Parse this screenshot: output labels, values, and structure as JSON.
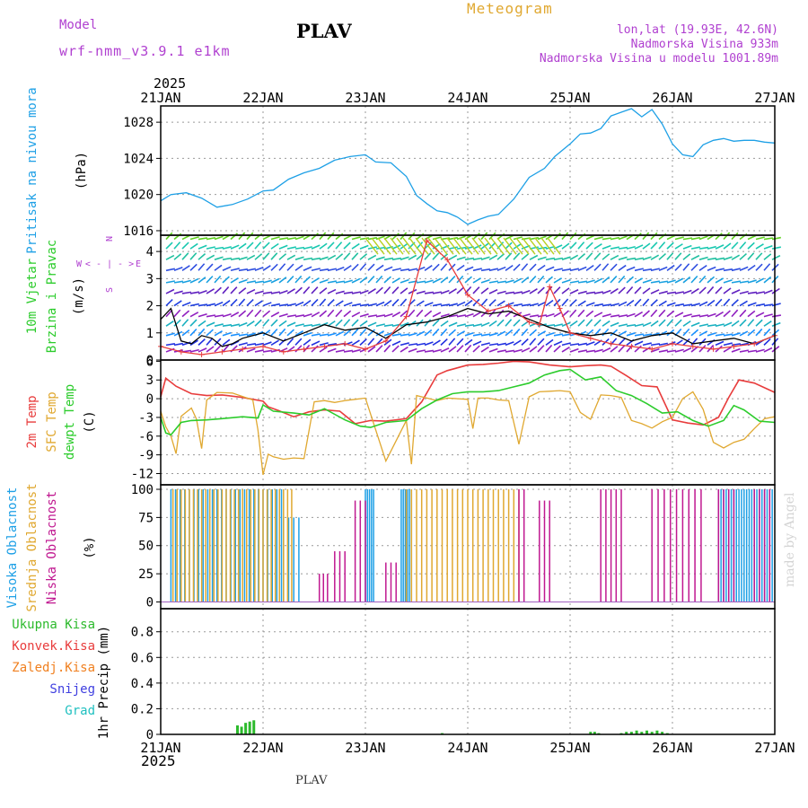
{
  "header": {
    "title": "PLAV",
    "chart_label": "Meteogram",
    "model_label": "Model",
    "model_name": "wrf-nmm_v3.9.1 e1km",
    "coords": "lon,lat (19.93E, 42.6N)",
    "elevation": "Nadmorska Visina 933m",
    "model_elevation": "Nadmorska Visina u modelu 1001.89m",
    "footer_station": "PLAV",
    "watermark": "made by Angel",
    "year_top": "2025",
    "year_bottom": "2025"
  },
  "colors": {
    "pressure": "#1ea0e6",
    "temp2m": "#e83c3c",
    "sfctemp": "#e0a830",
    "dewpt": "#2ccc2c",
    "wind_black": "#000000",
    "wind_red": "#e83c3c",
    "cloud_high": "#1ea0e6",
    "cloud_mid": "#e0a830",
    "cloud_low": "#c01890",
    "precip_total": "#2cba2c",
    "precip_conv": "#e83c3c",
    "precip_frz": "#f08020",
    "precip_snow": "#4040e0",
    "precip_grad": "#20c0c0",
    "purple_text": "#b040d0"
  },
  "chart_data": {
    "type": "line",
    "x_ticks": [
      "21JAN",
      "22JAN",
      "23JAN",
      "24JAN",
      "25JAN",
      "26JAN",
      "27JAN"
    ],
    "x_range_days": [
      0,
      6
    ],
    "panels": [
      {
        "id": "pressure",
        "ylabel": "Pritisak na nivou mora",
        "unit": "(hPa)",
        "ylim": [
          1015.5,
          1029.8
        ],
        "yticks": [
          "1016",
          "1020",
          "1024",
          "1028"
        ],
        "ytick_values": [
          1016,
          1020,
          1024,
          1028
        ],
        "series": [
          {
            "key": "pressure",
            "x": [
              0,
              0.1,
              0.25,
              0.4,
              0.55,
              0.7,
              0.85,
              1.0,
              1.1,
              1.25,
              1.4,
              1.55,
              1.7,
              1.85,
              2.0,
              2.1,
              2.25,
              2.4,
              2.5,
              2.6,
              2.7,
              2.8,
              2.9,
              3.0,
              3.1,
              3.2,
              3.3,
              3.45,
              3.6,
              3.75,
              3.85,
              4.0,
              4.1,
              4.2,
              4.3,
              4.4,
              4.5,
              4.6,
              4.7,
              4.8,
              4.9,
              5.0,
              5.1,
              5.2,
              5.3,
              5.4,
              5.5,
              5.6,
              5.7,
              5.8,
              5.9,
              6.0
            ],
            "y": [
              1019.3,
              1020.0,
              1020.2,
              1019.6,
              1018.6,
              1018.9,
              1019.5,
              1020.4,
              1020.5,
              1021.7,
              1022.4,
              1022.9,
              1023.8,
              1024.2,
              1024.4,
              1023.6,
              1023.5,
              1022.0,
              1019.9,
              1019.0,
              1018.2,
              1018.0,
              1017.5,
              1016.7,
              1017.2,
              1017.6,
              1017.8,
              1019.5,
              1021.9,
              1022.9,
              1024.2,
              1025.6,
              1026.7,
              1026.8,
              1027.3,
              1028.7,
              1029.1,
              1029.5,
              1028.6,
              1029.4,
              1027.8,
              1025.6,
              1024.4,
              1024.2,
              1025.5,
              1026.0,
              1026.2,
              1025.9,
              1026.0,
              1026.0,
              1025.8,
              1025.7
            ]
          }
        ]
      },
      {
        "id": "wind",
        "ylabel": "10m Vjetar Brzina i Pravac",
        "unit": "(m/s)",
        "compass_labels": [
          "N",
          "W",
          "E",
          "S",
          "< - | - >"
        ],
        "ylim": [
          0,
          4.6
        ],
        "yticks": [
          "0",
          "1",
          "2",
          "3",
          "4"
        ],
        "ytick_values": [
          0,
          1,
          2,
          3,
          4
        ],
        "series": [
          {
            "key": "wind_black",
            "x": [
              0,
              0.1,
              0.2,
              0.3,
              0.4,
              0.5,
              0.6,
              0.7,
              0.8,
              0.9,
              1.0,
              1.2,
              1.4,
              1.6,
              1.8,
              2.0,
              2.2,
              2.4,
              2.6,
              2.8,
              3.0,
              3.2,
              3.4,
              3.6,
              3.8,
              4.0,
              4.2,
              4.4,
              4.6,
              4.8,
              5.0,
              5.2,
              5.4,
              5.6,
              5.8,
              6.0
            ],
            "y": [
              1.5,
              1.9,
              0.7,
              0.6,
              0.9,
              0.8,
              0.5,
              0.6,
              0.8,
              0.9,
              1.0,
              0.7,
              1.0,
              1.3,
              1.1,
              1.2,
              0.8,
              1.3,
              1.4,
              1.6,
              1.9,
              1.7,
              1.8,
              1.5,
              1.2,
              1.0,
              0.9,
              1.0,
              0.7,
              0.9,
              1.0,
              0.6,
              0.7,
              0.8,
              0.6,
              0.9
            ]
          },
          {
            "key": "wind_red",
            "x": [
              0,
              0.2,
              0.4,
              0.6,
              0.8,
              1.0,
              1.2,
              1.4,
              1.6,
              1.8,
              2.0,
              2.2,
              2.4,
              2.6,
              2.8,
              3.0,
              3.2,
              3.4,
              3.6,
              3.7,
              3.8,
              3.9,
              4.0,
              4.2,
              4.4,
              4.6,
              4.8,
              5.0,
              5.2,
              5.4,
              5.6,
              5.8,
              6.0
            ],
            "y": [
              0.5,
              0.3,
              0.2,
              0.3,
              0.4,
              0.5,
              0.3,
              0.4,
              0.5,
              0.6,
              0.4,
              0.7,
              1.6,
              4.4,
              3.7,
              2.4,
              1.8,
              2.0,
              1.4,
              1.3,
              2.7,
              1.9,
              1.0,
              0.8,
              0.6,
              0.5,
              0.4,
              0.6,
              0.5,
              0.4,
              0.5,
              0.6,
              0.9
            ]
          }
        ]
      },
      {
        "id": "temperature",
        "ylabel": "2m Temp / SFC Temp / dewpt Temp",
        "unit": "(C)",
        "ylim": [
          -13.8,
          6.2
        ],
        "yticks": [
          "-12",
          "-9",
          "-6",
          "-3",
          "0",
          "3",
          "6"
        ],
        "ytick_values": [
          -12,
          -9,
          -6,
          -3,
          0,
          3,
          6
        ],
        "legend": [
          "2m Temp",
          "SFC Temp",
          "dewpt Temp"
        ],
        "series": [
          {
            "key": "temp2m",
            "name": "2m Temp",
            "x": [
              0,
              0.05,
              0.15,
              0.3,
              0.45,
              0.6,
              0.8,
              1.0,
              1.05,
              1.15,
              1.3,
              1.45,
              1.6,
              1.75,
              1.9,
              2.05,
              2.2,
              2.4,
              2.55,
              2.7,
              2.8,
              3.0,
              3.15,
              3.3,
              3.45,
              3.6,
              3.8,
              4.0,
              4.15,
              4.3,
              4.4,
              4.55,
              4.7,
              4.85,
              5.0,
              5.15,
              5.3,
              5.45,
              5.55,
              5.65,
              5.8,
              6.0
            ],
            "y": [
              0.3,
              3.3,
              2.0,
              0.8,
              0.5,
              0.6,
              0.2,
              -0.4,
              -1.3,
              -1.9,
              -2.9,
              -2.1,
              -1.8,
              -2.0,
              -4.0,
              -3.5,
              -3.6,
              -3.2,
              -0.5,
              3.8,
              4.5,
              5.4,
              5.5,
              5.7,
              6.0,
              5.9,
              5.4,
              5.1,
              5.3,
              5.4,
              5.2,
              3.7,
              2.1,
              1.9,
              -3.4,
              -3.9,
              -4.2,
              -3.0,
              0.2,
              3.0,
              2.5,
              1.0
            ]
          },
          {
            "key": "sfctemp",
            "name": "SFC Temp",
            "x": [
              0,
              0.05,
              0.1,
              0.15,
              0.2,
              0.3,
              0.35,
              0.4,
              0.45,
              0.55,
              0.7,
              0.9,
              0.95,
              1.0,
              1.05,
              1.1,
              1.2,
              1.3,
              1.4,
              1.5,
              1.6,
              1.7,
              1.8,
              1.9,
              2.0,
              2.2,
              2.4,
              2.45,
              2.5,
              2.6,
              2.7,
              2.8,
              2.9,
              3.0,
              3.05,
              3.1,
              3.2,
              3.3,
              3.4,
              3.5,
              3.6,
              3.7,
              3.8,
              3.9,
              4.0,
              4.1,
              4.2,
              4.3,
              4.4,
              4.5,
              4.6,
              4.7,
              4.8,
              4.9,
              5.0,
              5.1,
              5.2,
              5.3,
              5.4,
              5.5,
              5.6,
              5.7,
              5.8,
              5.9,
              6.0
            ],
            "y": [
              -2.0,
              -4.5,
              -6.0,
              -8.8,
              -2.8,
              -1.5,
              -3.3,
              -8.0,
              -0.2,
              1.0,
              0.9,
              -0.2,
              -5.0,
              -12.2,
              -8.9,
              -9.3,
              -9.7,
              -9.5,
              -9.6,
              -0.5,
              -0.3,
              -0.6,
              -0.3,
              -0.1,
              0.1,
              -10.0,
              -3.5,
              -10.5,
              0.5,
              0.1,
              -0.3,
              0.1,
              0.0,
              -0.1,
              -4.8,
              0.1,
              0.1,
              -0.2,
              -0.3,
              -7.3,
              0.3,
              1.1,
              1.2,
              1.3,
              1.1,
              -2.2,
              -3.3,
              0.6,
              0.5,
              0.2,
              -3.5,
              -4.0,
              -4.7,
              -3.7,
              -3.0,
              0.0,
              1.1,
              -1.7,
              -7.0,
              -7.9,
              -7.0,
              -6.5,
              -4.8,
              -3.2,
              -2.9
            ]
          },
          {
            "key": "dewpt",
            "name": "dewpt Temp",
            "x": [
              0,
              0.05,
              0.1,
              0.2,
              0.3,
              0.45,
              0.6,
              0.8,
              0.95,
              1.0,
              1.1,
              1.3,
              1.45,
              1.6,
              1.8,
              1.95,
              2.05,
              2.2,
              2.4,
              2.55,
              2.7,
              2.85,
              3.0,
              3.15,
              3.3,
              3.45,
              3.6,
              3.75,
              3.9,
              4.0,
              4.15,
              4.3,
              4.45,
              4.6,
              4.75,
              4.9,
              5.05,
              5.2,
              5.35,
              5.5,
              5.6,
              5.7,
              5.85,
              6.0
            ],
            "y": [
              -3.0,
              -5.5,
              -5.8,
              -3.8,
              -3.5,
              -3.4,
              -3.2,
              -2.9,
              -3.1,
              -1.0,
              -2.0,
              -2.3,
              -2.6,
              -1.6,
              -3.4,
              -4.4,
              -4.6,
              -3.8,
              -3.5,
              -1.6,
              -0.2,
              0.8,
              1.1,
              1.1,
              1.3,
              1.9,
              2.5,
              3.8,
              4.5,
              4.7,
              3.0,
              3.5,
              1.3,
              0.5,
              -0.8,
              -2.3,
              -2.1,
              -3.5,
              -4.4,
              -3.5,
              -1.1,
              -1.8,
              -3.6,
              -3.8
            ]
          }
        ]
      },
      {
        "id": "clouds",
        "ylabel": "Visoka Oblacnost / Srednja Oblacnost / Niska Oblacnost",
        "unit": "(%)",
        "ylim": [
          -6,
          104
        ],
        "yticks": [
          "0",
          "25",
          "50",
          "75",
          "100"
        ],
        "ytick_values": [
          0,
          25,
          50,
          75,
          100
        ],
        "legend": [
          "Visoka Oblacnost",
          "Srednja Oblacnost",
          "Niska Oblacnost"
        ],
        "bars": [
          {
            "key": "cloud_high",
            "name": "Visoka Oblacnost",
            "segments": [
              [
                0.1,
                1.2,
                100,
                0.045
              ],
              [
                1.2,
                1.35,
                75,
                0.05
              ],
              [
                2.0,
                2.08,
                100,
                0.02
              ],
              [
                2.35,
                2.45,
                100,
                0.02
              ],
              [
                5.45,
                6.0,
                100,
                0.025
              ]
            ]
          },
          {
            "key": "cloud_mid",
            "name": "Srednja Oblacnost",
            "segments": [
              [
                0.12,
                1.3,
                100,
                0.04
              ],
              [
                2.4,
                3.5,
                100,
                0.05
              ]
            ]
          },
          {
            "key": "cloud_low",
            "name": "Niska Oblacnost",
            "segments": [
              [
                1.55,
                1.65,
                25,
                0.04
              ],
              [
                1.7,
                1.8,
                45,
                0.05
              ],
              [
                1.9,
                2.0,
                90,
                0.05
              ],
              [
                2.2,
                2.3,
                35,
                0.05
              ],
              [
                3.5,
                3.55,
                100,
                0.05
              ],
              [
                3.7,
                3.8,
                90,
                0.05
              ],
              [
                4.3,
                4.5,
                100,
                0.05
              ],
              [
                4.8,
                5.3,
                100,
                0.06
              ],
              [
                5.45,
                5.6,
                100,
                0.05
              ],
              [
                5.8,
                5.95,
                100,
                0.05
              ]
            ]
          }
        ]
      },
      {
        "id": "precip",
        "ylabel": "1hr Precip",
        "unit": "(mm)",
        "ylim": [
          0,
          0.98
        ],
        "yticks": [
          "0",
          "0.2",
          "0.4",
          "0.6",
          "0.8"
        ],
        "ytick_values": [
          0,
          0.2,
          0.4,
          0.6,
          0.8
        ],
        "legend": [
          "Ukupna Kisa",
          "Konvek.Kisa",
          "Zaledj.Kisa",
          "Snijeg",
          "Grad"
        ],
        "bars": [
          {
            "key": "precip_total",
            "name": "Ukupna Kisa",
            "x": [
              0.75,
              0.79,
              0.83,
              0.87,
              0.91,
              2.75,
              4.2,
              4.24,
              4.28,
              4.5,
              4.55,
              4.6,
              4.65,
              4.7,
              4.75,
              4.8,
              4.85,
              4.9,
              4.95
            ],
            "y": [
              0.07,
              0.06,
              0.09,
              0.1,
              0.11,
              0.01,
              0.02,
              0.02,
              0.01,
              0.01,
              0.02,
              0.02,
              0.03,
              0.02,
              0.03,
              0.02,
              0.03,
              0.02,
              0.01
            ]
          }
        ]
      }
    ]
  }
}
